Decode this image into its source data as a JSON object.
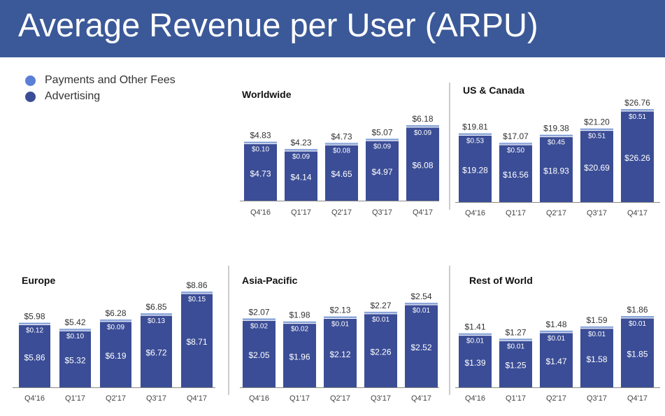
{
  "header": {
    "title": "Average Revenue per User (ARPU)"
  },
  "legend": {
    "items": [
      {
        "label": "Payments and Other Fees",
        "color": "#5b7fd6"
      },
      {
        "label": "Advertising",
        "color": "#3b4d96"
      }
    ]
  },
  "colors": {
    "advertising": "#3b4d96",
    "payments": "#8aa4d8",
    "header_bg": "#3b5998",
    "axis": "#888888",
    "divider": "#bbbbbb"
  },
  "chart_data": [
    {
      "type": "bar",
      "stacked": true,
      "title": "Worldwide",
      "categories": [
        "Q4'16",
        "Q1'17",
        "Q2'17",
        "Q3'17",
        "Q4'17"
      ],
      "series": [
        {
          "name": "Advertising",
          "values": [
            4.73,
            4.14,
            4.65,
            4.97,
            6.08
          ],
          "labels": [
            "$4.73",
            "$4.14",
            "$4.65",
            "$4.97",
            "$6.08"
          ]
        },
        {
          "name": "Payments and Other Fees",
          "values": [
            0.1,
            0.09,
            0.08,
            0.09,
            0.09
          ],
          "labels": [
            "$0.10",
            "$0.09",
            "$0.08",
            "$0.09",
            "$0.09"
          ]
        }
      ],
      "totals": [
        4.83,
        4.23,
        4.73,
        5.07,
        6.18
      ],
      "total_labels": [
        "$4.83",
        "$4.23",
        "$4.73",
        "$5.07",
        "$6.18"
      ]
    },
    {
      "type": "bar",
      "stacked": true,
      "title": "US & Canada",
      "categories": [
        "Q4'16",
        "Q1'17",
        "Q2'17",
        "Q3'17",
        "Q4'17"
      ],
      "series": [
        {
          "name": "Advertising",
          "values": [
            19.28,
            16.56,
            18.93,
            20.69,
            26.26
          ],
          "labels": [
            "$19.28",
            "$16.56",
            "$18.93",
            "$20.69",
            "$26.26"
          ]
        },
        {
          "name": "Payments and Other Fees",
          "values": [
            0.53,
            0.5,
            0.45,
            0.51,
            0.51
          ],
          "labels": [
            "$0.53",
            "$0.50",
            "$0.45",
            "$0.51",
            "$0.51"
          ]
        }
      ],
      "totals": [
        19.81,
        17.07,
        19.38,
        21.2,
        26.76
      ],
      "total_labels": [
        "$19.81",
        "$17.07",
        "$19.38",
        "$21.20",
        "$26.76"
      ]
    },
    {
      "type": "bar",
      "stacked": true,
      "title": "Europe",
      "categories": [
        "Q4'16",
        "Q1'17",
        "Q2'17",
        "Q3'17",
        "Q4'17"
      ],
      "series": [
        {
          "name": "Advertising",
          "values": [
            5.86,
            5.32,
            6.19,
            6.72,
            8.71
          ],
          "labels": [
            "$5.86",
            "$5.32",
            "$6.19",
            "$6.72",
            "$8.71"
          ]
        },
        {
          "name": "Payments and Other Fees",
          "values": [
            0.12,
            0.1,
            0.09,
            0.13,
            0.15
          ],
          "labels": [
            "$0.12",
            "$0.10",
            "$0.09",
            "$0.13",
            "$0.15"
          ]
        }
      ],
      "totals": [
        5.98,
        5.42,
        6.28,
        6.85,
        8.86
      ],
      "total_labels": [
        "$5.98",
        "$5.42",
        "$6.28",
        "$6.85",
        "$8.86"
      ]
    },
    {
      "type": "bar",
      "stacked": true,
      "title": "Asia-Pacific",
      "categories": [
        "Q4'16",
        "Q1'17",
        "Q2'17",
        "Q3'17",
        "Q4'17"
      ],
      "series": [
        {
          "name": "Advertising",
          "values": [
            2.05,
            1.96,
            2.12,
            2.26,
            2.52
          ],
          "labels": [
            "$2.05",
            "$1.96",
            "$2.12",
            "$2.26",
            "$2.52"
          ]
        },
        {
          "name": "Payments and Other Fees",
          "values": [
            0.02,
            0.02,
            0.01,
            0.01,
            0.01
          ],
          "labels": [
            "$0.02",
            "$0.02",
            "$0.01",
            "$0.01",
            "$0.01"
          ]
        }
      ],
      "totals": [
        2.07,
        1.98,
        2.13,
        2.27,
        2.54
      ],
      "total_labels": [
        "$2.07",
        "$1.98",
        "$2.13",
        "$2.27",
        "$2.54"
      ]
    },
    {
      "type": "bar",
      "stacked": true,
      "title": "Rest of World",
      "categories": [
        "Q4'16",
        "Q1'17",
        "Q2'17",
        "Q3'17",
        "Q4'17"
      ],
      "series": [
        {
          "name": "Advertising",
          "values": [
            1.39,
            1.25,
            1.47,
            1.58,
            1.85
          ],
          "labels": [
            "$1.39",
            "$1.25",
            "$1.47",
            "$1.58",
            "$1.85"
          ]
        },
        {
          "name": "Payments and Other Fees",
          "values": [
            0.01,
            0.01,
            0.01,
            0.01,
            0.01
          ],
          "labels": [
            "$0.01",
            "$0.01",
            "$0.01",
            "$0.01",
            "$0.01"
          ]
        }
      ],
      "totals": [
        1.41,
        1.27,
        1.48,
        1.59,
        1.86
      ],
      "total_labels": [
        "$1.41",
        "$1.27",
        "$1.48",
        "$1.59",
        "$1.86"
      ]
    }
  ]
}
